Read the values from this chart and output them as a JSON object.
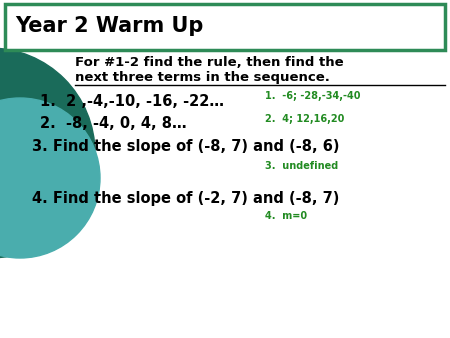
{
  "title": "Year 2 Warm Up",
  "title_box_color": "#2e8b57",
  "background_color": "#ffffff",
  "circle_dark": "#1a6b5a",
  "circle_light": "#4aadad",
  "instruction_line1": "For #1-2 find the rule, then find the",
  "instruction_line2": "next three terms in the sequence.",
  "questions": [
    "1.  2 ,-4,-10, -16, -22…",
    "2.  -8, -4, 0, 4, 8…",
    "3. Find the slope of (-8, 7) and (-8, 6)",
    "4. Find the slope of (-2, 7) and (-8, 7)"
  ],
  "answers": [
    "1.  -6; -28,-34,-40",
    "2.  4; 12,16,20",
    "3.  undefined",
    "4.  m=0"
  ],
  "answer_color": "#228b22",
  "text_color": "#000000",
  "underline_color": "#000000"
}
